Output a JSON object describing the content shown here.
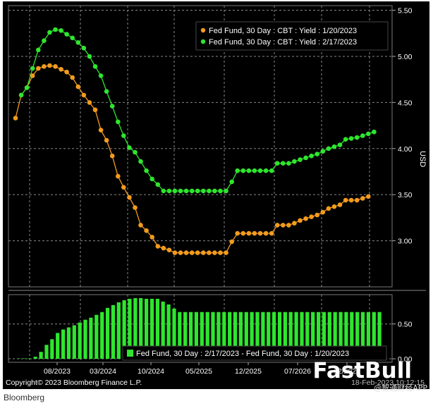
{
  "chart_data": {
    "type": "line",
    "y_unit_label": "USD",
    "y_ticks": [
      "5.50",
      "5.00",
      "4.50",
      "4.00",
      "3.50",
      "3.00"
    ],
    "y_tick_values": [
      5.5,
      5.0,
      4.5,
      4.0,
      3.5,
      3.0
    ],
    "ylim": [
      2.5,
      5.55
    ],
    "x_ticks": [
      "08/2023",
      "03/2024",
      "10/2024",
      "05/2025",
      "12/2025",
      "07/2026",
      "02/2027"
    ],
    "legend_position": "top-right",
    "grid": true,
    "series": [
      {
        "name": "Fed Fund, 30 Day : CBT : Yield : 1/20/2023",
        "color": "#f29b1d",
        "values": [
          4.33,
          4.58,
          4.66,
          4.79,
          4.87,
          4.89,
          4.9,
          4.89,
          4.86,
          4.83,
          4.77,
          4.67,
          4.58,
          4.5,
          4.42,
          4.2,
          4.09,
          3.92,
          3.7,
          3.58,
          3.47,
          3.36,
          3.17,
          3.11,
          3.04,
          2.94,
          2.92,
          2.9,
          2.87,
          2.87,
          2.87,
          2.87,
          2.87,
          2.87,
          2.87,
          2.87,
          2.87,
          2.87,
          2.99,
          3.08,
          3.08,
          3.08,
          3.08,
          3.08,
          3.08,
          3.08,
          3.17,
          3.17,
          3.17,
          3.19,
          3.22,
          3.24,
          3.26,
          3.28,
          3.31,
          3.35,
          3.37,
          3.39,
          3.44,
          3.44,
          3.44,
          3.46,
          3.48
        ]
      },
      {
        "name": "Fed Fund, 30 Day : CBT : Yield : 2/17/2023",
        "color": "#2ee62e",
        "values": [
          null,
          4.58,
          4.66,
          4.87,
          5.07,
          5.17,
          5.26,
          5.29,
          5.28,
          5.24,
          5.2,
          5.15,
          5.09,
          5.0,
          4.89,
          4.79,
          4.62,
          4.46,
          4.29,
          4.14,
          4.01,
          3.96,
          3.86,
          3.76,
          3.67,
          3.61,
          3.54,
          3.54,
          3.54,
          3.54,
          3.54,
          3.54,
          3.54,
          3.54,
          3.54,
          3.54,
          3.54,
          3.54,
          3.64,
          3.76,
          3.76,
          3.76,
          3.76,
          3.76,
          3.76,
          3.76,
          3.84,
          3.84,
          3.84,
          3.86,
          3.88,
          3.9,
          3.92,
          3.94,
          3.97,
          4.0,
          4.02,
          4.04,
          4.1,
          4.11,
          4.12,
          4.14,
          4.16,
          4.18
        ]
      }
    ],
    "diff_panel": {
      "y_ticks": [
        "0.50",
        "0.00"
      ],
      "y_tick_values": [
        0.5,
        0.0
      ],
      "ylim": [
        -0.05,
        0.92
      ],
      "legend": "Fed Fund, 30 Day : 2/17/2023 - Fed Fund, 30 Day : 1/20/2023",
      "color": "#2ee62e",
      "values": [
        0.0,
        0.0,
        0.0,
        0.03,
        0.1,
        0.2,
        0.28,
        0.37,
        0.42,
        0.45,
        0.48,
        0.52,
        0.56,
        0.59,
        0.63,
        0.67,
        0.73,
        0.77,
        0.81,
        0.84,
        0.86,
        0.87,
        0.87,
        0.86,
        0.86,
        0.86,
        0.82,
        0.78,
        0.72,
        0.67,
        0.67,
        0.67,
        0.67,
        0.67,
        0.67,
        0.67,
        0.67,
        0.67,
        0.67,
        0.67,
        0.67,
        0.67,
        0.67,
        0.67,
        0.67,
        0.67,
        0.67,
        0.67,
        0.67,
        0.67,
        0.67,
        0.67,
        0.67,
        0.67,
        0.67,
        0.67,
        0.67,
        0.67,
        0.67,
        0.67,
        0.67,
        0.67,
        0.67,
        0.67,
        0.67,
        0.67
      ]
    },
    "copyright": "Copyright© 2023 Bloomberg Finance L.P.",
    "timestamp": "18-Feb-2023 10:12:15"
  },
  "footer": {
    "source": "Bloomberg"
  },
  "watermark": {
    "brand": "FastBull",
    "sub": "@智通财经APP"
  }
}
